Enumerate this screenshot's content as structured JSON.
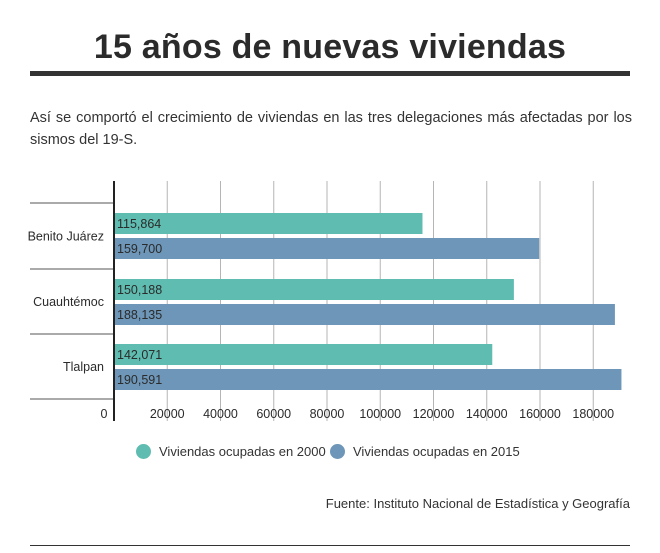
{
  "header": {
    "title": "15 años de nuevas viviendas",
    "subtitle": "Así se comportó el crecimiento de viviendas en las tres delegaciones más afectadas por los sismos del 19-S."
  },
  "legend": {
    "items": [
      {
        "label": "Viviendas ocupadas en 2000",
        "color": "#5fbcb0"
      },
      {
        "label": "Viviendas ocupadas en 2015",
        "color": "#6d96b8"
      }
    ]
  },
  "source": "Fuente: Instituto Nacional de Estadística y Geografía",
  "chart_data": {
    "type": "bar",
    "orientation": "horizontal",
    "categories": [
      "Benito Juárez",
      "Cuauhtémoc",
      "Tlalpan"
    ],
    "series": [
      {
        "name": "Viviendas ocupadas en 2000",
        "values": [
          115864,
          150188,
          142071
        ],
        "labels": [
          "115,864",
          "150,188",
          "142,071"
        ],
        "color": "#5fbcb0"
      },
      {
        "name": "Viviendas ocupadas en 2015",
        "values": [
          159700,
          188135,
          190591
        ],
        "labels": [
          "159,700",
          "188,135",
          "190,591"
        ],
        "color": "#6d96b8"
      }
    ],
    "xticks": [
      0,
      20000,
      40000,
      60000,
      80000,
      100000,
      120000,
      140000,
      160000,
      180000
    ],
    "xlim": [
      0,
      190591
    ],
    "grid": true,
    "legend_position": "bottom"
  }
}
